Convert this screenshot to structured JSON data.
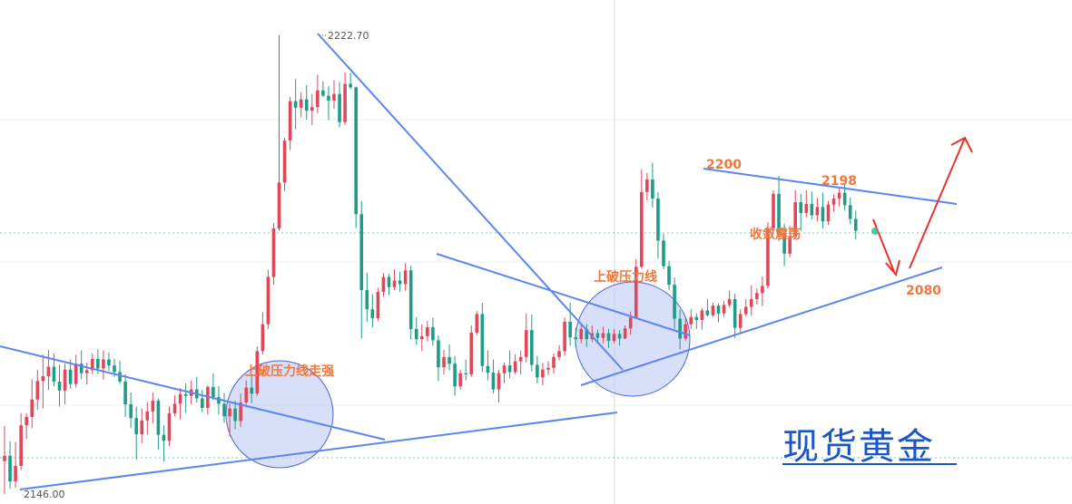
{
  "chart_data": {
    "type": "candlestick",
    "title": "现货黄金",
    "price_labels": {
      "high": "2222.70",
      "low": "2146.00"
    },
    "annotations": {
      "left_circle": "上破压力线走强",
      "mid_circle": "上破压力线",
      "converge": "收敛震荡",
      "level_2200": "2200",
      "level_2198": "2198",
      "level_2080": "2080"
    },
    "colors": {
      "up": "#e0485a",
      "down": "#1f9c86",
      "trend": "#5b86f0",
      "arrow": "#e8322d",
      "circle_fill": "#c8d2f5",
      "circle_stroke": "#4a64d6"
    },
    "candles": [
      [
        2151.5,
        2157.4,
        2146.0,
        2152.4
      ],
      [
        2152.4,
        2154.8,
        2146.9,
        2148.1
      ],
      [
        2148.1,
        2154.7,
        2147.1,
        2150.7
      ],
      [
        2150.7,
        2159.5,
        2150.0,
        2157.5
      ],
      [
        2157.5,
        2159.5,
        2155.2,
        2158.9
      ],
      [
        2158.9,
        2165.2,
        2157.0,
        2161.8
      ],
      [
        2161.8,
        2166.8,
        2160.1,
        2164.9
      ],
      [
        2164.9,
        2169.3,
        2160.3,
        2165.7
      ],
      [
        2165.7,
        2170.1,
        2163.4,
        2167.3
      ],
      [
        2167.3,
        2169.5,
        2164.0,
        2164.8
      ],
      [
        2164.8,
        2167.6,
        2160.6,
        2163.3
      ],
      [
        2163.3,
        2167.8,
        2161.0,
        2166.8
      ],
      [
        2166.8,
        2168.5,
        2163.6,
        2164.4
      ],
      [
        2164.4,
        2169.3,
        2163.8,
        2167.8
      ],
      [
        2167.8,
        2170.0,
        2165.2,
        2166.2
      ],
      [
        2166.2,
        2168.0,
        2164.3,
        2166.7
      ],
      [
        2166.7,
        2169.5,
        2166.0,
        2168.6
      ],
      [
        2168.6,
        2170.2,
        2166.1,
        2167.0
      ],
      [
        2167.0,
        2170.0,
        2165.1,
        2168.5
      ],
      [
        2168.5,
        2169.7,
        2166.6,
        2167.5
      ],
      [
        2167.5,
        2168.6,
        2165.6,
        2166.4
      ],
      [
        2166.4,
        2168.3,
        2164.4,
        2164.8
      ],
      [
        2164.8,
        2166.0,
        2158.9,
        2161.0
      ],
      [
        2161.0,
        2163.0,
        2157.0,
        2158.7
      ],
      [
        2158.7,
        2160.6,
        2151.8,
        2156.0
      ],
      [
        2156.0,
        2160.3,
        2154.5,
        2158.3
      ],
      [
        2158.3,
        2161.4,
        2155.9,
        2159.8
      ],
      [
        2159.8,
        2163.0,
        2157.8,
        2161.6
      ],
      [
        2161.6,
        2162.0,
        2153.4,
        2155.9
      ],
      [
        2155.9,
        2157.5,
        2151.5,
        2154.9
      ],
      [
        2154.9,
        2160.6,
        2154.0,
        2159.5
      ],
      [
        2159.5,
        2162.5,
        2159.0,
        2161.1
      ],
      [
        2161.1,
        2163.7,
        2158.5,
        2162.7
      ],
      [
        2162.7,
        2164.5,
        2159.6,
        2162.4
      ],
      [
        2162.4,
        2165.0,
        2161.0,
        2163.5
      ],
      [
        2163.5,
        2165.6,
        2161.3,
        2162.0
      ],
      [
        2162.0,
        2163.4,
        2159.7,
        2160.4
      ],
      [
        2160.4,
        2164.2,
        2159.3,
        2163.9
      ],
      [
        2163.9,
        2166.2,
        2161.7,
        2162.2
      ],
      [
        2162.2,
        2164.0,
        2159.3,
        2161.1
      ],
      [
        2161.1,
        2162.9,
        2157.9,
        2159.0
      ],
      [
        2159.0,
        2161.1,
        2155.6,
        2160.3
      ],
      [
        2160.3,
        2161.6,
        2156.8,
        2158.2
      ],
      [
        2158.2,
        2162.8,
        2157.2,
        2161.3
      ],
      [
        2161.3,
        2165.0,
        2160.6,
        2163.8
      ],
      [
        2163.8,
        2166.0,
        2161.2,
        2162.8
      ],
      [
        2162.8,
        2170.7,
        2162.4,
        2169.9
      ],
      [
        2169.9,
        2176.4,
        2169.3,
        2174.4
      ],
      [
        2174.4,
        2183.5,
        2173.6,
        2182.3
      ],
      [
        2182.3,
        2191.3,
        2181.0,
        2190.4
      ],
      [
        2190.4,
        2222.7,
        2190.0,
        2198.1
      ],
      [
        2198.1,
        2205.6,
        2196.6,
        2205.1
      ],
      [
        2205.1,
        2212.4,
        2203.5,
        2211.7
      ],
      [
        2211.7,
        2215.4,
        2207.0,
        2210.6
      ],
      [
        2210.6,
        2213.2,
        2209.0,
        2212.0
      ],
      [
        2212.0,
        2214.4,
        2208.6,
        2210.1
      ],
      [
        2210.1,
        2212.9,
        2207.7,
        2210.7
      ],
      [
        2210.7,
        2216.1,
        2209.7,
        2213.5
      ],
      [
        2213.5,
        2215.0,
        2212.4,
        2212.6
      ],
      [
        2212.6,
        2214.2,
        2208.5,
        2211.8
      ],
      [
        2211.8,
        2215.2,
        2210.4,
        2212.9
      ],
      [
        2212.9,
        2214.9,
        2207.3,
        2208.2
      ],
      [
        2208.2,
        2216.5,
        2207.7,
        2214.6
      ],
      [
        2214.6,
        2216.4,
        2213.7,
        2214.0
      ],
      [
        2214.0,
        2214.2,
        2190.5,
        2192.8
      ],
      [
        2192.8,
        2195.0,
        2172.0,
        2180.1
      ],
      [
        2180.1,
        2183.0,
        2174.8,
        2176.9
      ],
      [
        2176.9,
        2179.4,
        2173.9,
        2175.4
      ],
      [
        2175.4,
        2180.5,
        2174.9,
        2179.8
      ],
      [
        2179.8,
        2183.0,
        2179.0,
        2182.3
      ],
      [
        2182.3,
        2182.8,
        2179.3,
        2180.6
      ],
      [
        2180.6,
        2183.6,
        2180.1,
        2181.7
      ],
      [
        2181.7,
        2183.2,
        2179.8,
        2181.1
      ],
      [
        2181.1,
        2184.6,
        2180.0,
        2183.4
      ],
      [
        2183.4,
        2184.2,
        2171.8,
        2173.6
      ],
      [
        2173.6,
        2175.6,
        2170.9,
        2171.9
      ],
      [
        2171.9,
        2174.4,
        2169.9,
        2172.4
      ],
      [
        2172.4,
        2175.0,
        2171.5,
        2173.9
      ],
      [
        2173.9,
        2175.5,
        2170.8,
        2171.7
      ],
      [
        2171.7,
        2172.5,
        2164.9,
        2167.2
      ],
      [
        2167.2,
        2170.1,
        2166.0,
        2168.9
      ],
      [
        2168.9,
        2171.0,
        2166.7,
        2167.8
      ],
      [
        2167.8,
        2169.1,
        2162.4,
        2164.0
      ],
      [
        2164.0,
        2166.8,
        2163.5,
        2166.2
      ],
      [
        2166.2,
        2168.5,
        2165.0,
        2166.0
      ],
      [
        2166.0,
        2174.2,
        2165.6,
        2173.0
      ],
      [
        2173.0,
        2176.6,
        2172.6,
        2176.1
      ],
      [
        2176.1,
        2178.0,
        2166.4,
        2167.4
      ],
      [
        2167.4,
        2170.0,
        2165.0,
        2166.3
      ],
      [
        2166.3,
        2168.5,
        2162.8,
        2163.5
      ],
      [
        2163.5,
        2166.8,
        2161.3,
        2166.2
      ],
      [
        2166.2,
        2168.0,
        2164.5,
        2167.5
      ],
      [
        2167.5,
        2170.0,
        2165.4,
        2166.4
      ],
      [
        2166.4,
        2169.4,
        2166.0,
        2168.2
      ],
      [
        2168.2,
        2170.0,
        2166.0,
        2168.9
      ],
      [
        2168.9,
        2176.2,
        2168.0,
        2173.4
      ],
      [
        2173.4,
        2176.0,
        2166.5,
        2167.6
      ],
      [
        2167.6,
        2169.1,
        2164.5,
        2165.5
      ],
      [
        2165.5,
        2167.9,
        2164.2,
        2166.8
      ],
      [
        2166.8,
        2168.2,
        2165.9,
        2167.1
      ],
      [
        2167.1,
        2169.5,
        2166.1,
        2168.9
      ],
      [
        2168.9,
        2170.9,
        2168.4,
        2169.9
      ],
      [
        2169.9,
        2175.5,
        2169.1,
        2174.8
      ],
      [
        2174.8,
        2178.0,
        2170.8,
        2172.2
      ],
      [
        2172.2,
        2173.8,
        2170.6,
        2171.9
      ],
      [
        2171.9,
        2174.6,
        2171.2,
        2173.6
      ],
      [
        2173.6,
        2174.4,
        2170.6,
        2171.9
      ],
      [
        2171.9,
        2174.2,
        2171.4,
        2172.9
      ],
      [
        2172.9,
        2173.5,
        2171.1,
        2172.1
      ],
      [
        2172.1,
        2174.0,
        2171.2,
        2172.9
      ],
      [
        2172.9,
        2173.6,
        2170.4,
        2171.6
      ],
      [
        2171.6,
        2173.6,
        2171.2,
        2172.8
      ],
      [
        2172.8,
        2173.4,
        2170.8,
        2172.0
      ],
      [
        2172.0,
        2174.2,
        2171.9,
        2173.7
      ],
      [
        2173.7,
        2176.5,
        2172.6,
        2175.5
      ],
      [
        2175.5,
        2185.3,
        2175.3,
        2184.0
      ],
      [
        2184.0,
        2200.3,
        2183.7,
        2196.5
      ],
      [
        2196.5,
        2199.7,
        2195.1,
        2198.6
      ],
      [
        2198.6,
        2201.4,
        2193.9,
        2195.4
      ],
      [
        2195.4,
        2196.5,
        2185.4,
        2188.4
      ],
      [
        2188.4,
        2189.5,
        2183.6,
        2184.1
      ],
      [
        2184.1,
        2185.0,
        2180.1,
        2181.0
      ],
      [
        2181.0,
        2182.2,
        2173.6,
        2175.3
      ],
      [
        2175.3,
        2176.8,
        2170.2,
        2172.0
      ],
      [
        2172.0,
        2175.4,
        2171.6,
        2174.4
      ],
      [
        2174.4,
        2176.9,
        2173.6,
        2175.6
      ],
      [
        2175.6,
        2176.2,
        2173.6,
        2175.1
      ],
      [
        2175.1,
        2177.1,
        2173.5,
        2176.7
      ],
      [
        2176.7,
        2178.6,
        2175.7,
        2175.9
      ],
      [
        2175.9,
        2178.0,
        2175.6,
        2177.5
      ],
      [
        2177.5,
        2177.9,
        2174.7,
        2176.2
      ],
      [
        2176.2,
        2178.3,
        2175.6,
        2177.6
      ],
      [
        2177.6,
        2180.0,
        2177.2,
        2178.6
      ],
      [
        2178.6,
        2179.5,
        2172.1,
        2173.8
      ],
      [
        2173.8,
        2176.9,
        2173.0,
        2176.1
      ],
      [
        2176.1,
        2178.6,
        2175.7,
        2177.3
      ],
      [
        2177.3,
        2180.9,
        2175.8,
        2178.6
      ],
      [
        2178.6,
        2180.4,
        2177.7,
        2179.6
      ],
      [
        2179.6,
        2182.4,
        2177.4,
        2180.8
      ],
      [
        2180.8,
        2191.5,
        2180.4,
        2190.4
      ],
      [
        2190.4,
        2196.8,
        2189.4,
        2196.2
      ],
      [
        2196.2,
        2199.2,
        2188.3,
        2189.3
      ],
      [
        2189.3,
        2191.2,
        2184.1,
        2186.2
      ],
      [
        2186.2,
        2190.8,
        2185.6,
        2189.1
      ],
      [
        2189.1,
        2196.8,
        2188.5,
        2194.8
      ],
      [
        2194.8,
        2196.2,
        2190.0,
        2193.0
      ],
      [
        2193.0,
        2196.8,
        2192.3,
        2194.5
      ],
      [
        2194.5,
        2196.6,
        2191.9,
        2192.6
      ],
      [
        2192.6,
        2195.5,
        2191.6,
        2194.0
      ],
      [
        2194.0,
        2196.4,
        2190.4,
        2191.6
      ],
      [
        2191.6,
        2195.0,
        2191.0,
        2194.4
      ],
      [
        2194.4,
        2196.1,
        2193.2,
        2195.4
      ],
      [
        2195.4,
        2197.2,
        2194.1,
        2196.4
      ],
      [
        2196.4,
        2198.1,
        2193.4,
        2194.3
      ],
      [
        2194.3,
        2195.6,
        2191.1,
        2192.0
      ],
      [
        2192.0,
        2193.4,
        2188.6,
        2190.0
      ]
    ]
  }
}
